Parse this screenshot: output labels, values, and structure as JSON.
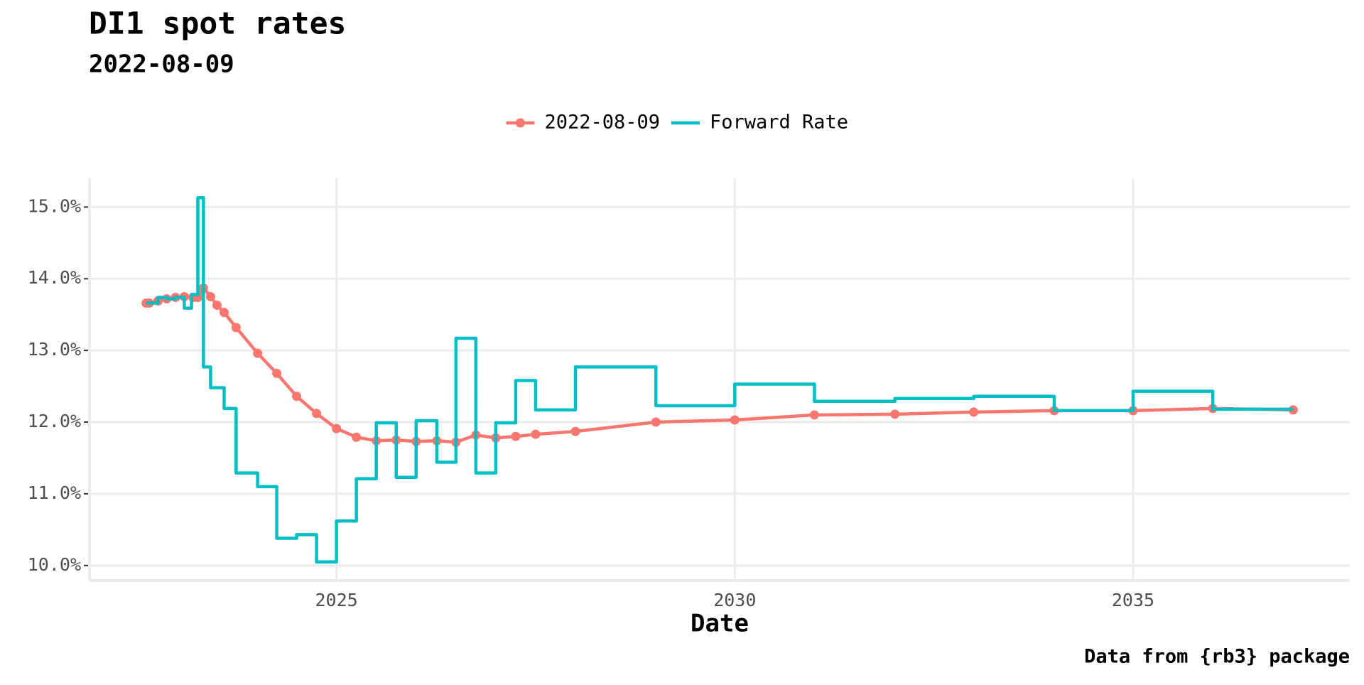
{
  "chart_data": {
    "type": "line",
    "title": "DI1 spot rates",
    "subtitle": "2022-08-09",
    "x_label": "Date",
    "caption": "Data from {rb3} package",
    "grid": true,
    "legend": "top",
    "xlim": [
      2021.9,
      2037.72
    ],
    "xticks": [
      2025,
      2030,
      2035
    ],
    "ylim": [
      9.79,
      15.4
    ],
    "yticks": [
      {
        "value": 10,
        "label": "10.0%"
      },
      {
        "value": 11,
        "label": "11.0%"
      },
      {
        "value": 12,
        "label": "12.0%"
      },
      {
        "value": 13,
        "label": "13.0%"
      },
      {
        "value": 14,
        "label": "14.0%"
      },
      {
        "value": 15,
        "label": "15.0%"
      }
    ],
    "series": [
      {
        "name": "2022-08-09",
        "color": "#F8766D",
        "style": "line-points",
        "x": [
          2022.61,
          2022.65,
          2022.76,
          2022.87,
          2022.98,
          2023.09,
          2023.2,
          2023.26,
          2023.33,
          2023.42,
          2023.5,
          2023.59,
          2023.74,
          2024.01,
          2024.25,
          2024.5,
          2024.75,
          2025.0,
          2025.25,
          2025.5,
          2025.75,
          2026.0,
          2026.26,
          2026.5,
          2026.75,
          2027.0,
          2027.25,
          2027.5,
          2028.0,
          2029.01,
          2030.0,
          2031.0,
          2032.01,
          2033.0,
          2034.01,
          2035.0,
          2036.0,
          2037.01
        ],
        "values": [
          13.66,
          13.66,
          13.69,
          13.72,
          13.74,
          13.75,
          13.74,
          13.74,
          13.87,
          13.75,
          13.63,
          13.53,
          13.32,
          12.96,
          12.68,
          12.36,
          12.12,
          11.91,
          11.79,
          11.74,
          11.75,
          11.73,
          11.74,
          11.72,
          11.82,
          11.78,
          11.8,
          11.83,
          11.87,
          12.0,
          12.03,
          12.1,
          12.11,
          12.14,
          12.16,
          12.16,
          12.19,
          12.17
        ]
      },
      {
        "name": "Forward Rate",
        "color": "#00BFC4",
        "style": "step",
        "x": [
          2022.61,
          2022.76,
          2022.87,
          2022.98,
          2023.09,
          2023.18,
          2023.26,
          2023.33,
          2023.42,
          2023.59,
          2023.74,
          2024.01,
          2024.25,
          2024.5,
          2024.75,
          2025.0,
          2025.25,
          2025.5,
          2025.75,
          2026.0,
          2026.26,
          2026.5,
          2026.75,
          2027.0,
          2027.25,
          2027.5,
          2028.0,
          2029.01,
          2030.0,
          2031.0,
          2032.01,
          2033.0,
          2034.01,
          2035.0,
          2036.0,
          2037.01
        ],
        "values": [
          13.66,
          13.74,
          13.72,
          13.74,
          13.59,
          13.78,
          15.13,
          12.77,
          12.48,
          12.19,
          11.29,
          11.1,
          10.38,
          10.43,
          10.05,
          10.62,
          11.21,
          11.99,
          11.23,
          12.02,
          11.44,
          13.17,
          11.29,
          11.99,
          12.58,
          12.17,
          12.77,
          12.23,
          12.53,
          12.29,
          12.33,
          12.36,
          12.16,
          12.43,
          12.18,
          12.18
        ]
      }
    ]
  }
}
